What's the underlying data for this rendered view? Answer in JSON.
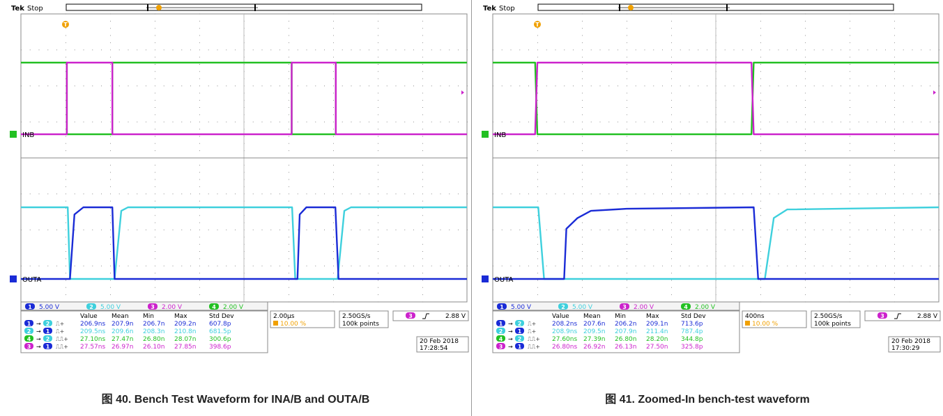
{
  "chart_data": [
    {
      "type": "line",
      "caption": "图 40. Bench Test Waveform for INA/B and OUTA/B",
      "status": {
        "brand": "Tek",
        "state": "Stop",
        "trigger_marker": "T"
      },
      "trace_labels": {
        "upper": "INB",
        "lower": "OUTA"
      },
      "channel_scales": [
        {
          "num": "1",
          "scale": "5.00 V",
          "color": "#1a2bd6"
        },
        {
          "num": "2",
          "scale": "5.00 V",
          "color": "#3ed0dd"
        },
        {
          "num": "3",
          "scale": "2.00 V",
          "color": "#cc22cc"
        },
        {
          "num": "4",
          "scale": "2.00 V",
          "color": "#22c022"
        }
      ],
      "timebase": "2.00µs",
      "trigger_position": "10.00 %",
      "sample_rate": "2.50GS/s",
      "record_length": "100k points",
      "trigger": {
        "channel": "3",
        "level": "2.88 V"
      },
      "date": "20 Feb 2018",
      "time": "17:28:54",
      "measurements": {
        "headers": [
          "Value",
          "Mean",
          "Min",
          "Max",
          "Std Dev"
        ],
        "rows": [
          {
            "from": "1",
            "to": "2",
            "edge": "rise",
            "color": "#1a2bd6",
            "values": [
              "206.9ns",
              "207.9n",
              "206.7n",
              "209.2n",
              "607.8p"
            ]
          },
          {
            "from": "2",
            "to": "1",
            "edge": "rise",
            "color": "#3ed0dd",
            "values": [
              "209.5ns",
              "209.6n",
              "208.3n",
              "210.8n",
              "681.5p"
            ]
          },
          {
            "from": "4",
            "to": "2",
            "edge": "fall",
            "color": "#22c022",
            "values": [
              "27.10ns",
              "27.47n",
              "26.80n",
              "28.07n",
              "300.6p"
            ]
          },
          {
            "from": "3",
            "to": "1",
            "edge": "fall",
            "color": "#cc22cc",
            "values": [
              "27.57ns",
              "26.97n",
              "26.10n",
              "27.85n",
              "398.6p"
            ]
          }
        ]
      },
      "x_divisions": [
        0,
        10
      ],
      "series": [
        {
          "channel": "4",
          "color": "#22c022",
          "level": [
            0,
            1
          ],
          "points": [
            [
              0,
              1
            ],
            [
              1.03,
              1
            ],
            [
              1.03,
              0
            ],
            [
              2.05,
              0
            ],
            [
              2.05,
              1
            ],
            [
              6.07,
              1
            ],
            [
              6.07,
              0
            ],
            [
              7.06,
              0
            ],
            [
              7.06,
              1
            ],
            [
              10,
              1
            ]
          ]
        },
        {
          "channel": "3",
          "color": "#cc22cc",
          "level": [
            0,
            1
          ],
          "points": [
            [
              0,
              0
            ],
            [
              1.03,
              0
            ],
            [
              1.03,
              1
            ],
            [
              2.05,
              1
            ],
            [
              2.05,
              0
            ],
            [
              6.07,
              0
            ],
            [
              6.07,
              1
            ],
            [
              7.06,
              1
            ],
            [
              7.06,
              0
            ],
            [
              10,
              0
            ]
          ]
        },
        {
          "channel": "2",
          "color": "#3ed0dd",
          "level": [
            0,
            1
          ],
          "points": [
            [
              0,
              1
            ],
            [
              1.05,
              1
            ],
            [
              1.1,
              0
            ],
            [
              2.1,
              0
            ],
            [
              2.25,
              0.95
            ],
            [
              2.4,
              1
            ],
            [
              6.08,
              1
            ],
            [
              6.15,
              0
            ],
            [
              7.1,
              0
            ],
            [
              7.25,
              0.95
            ],
            [
              7.4,
              1
            ],
            [
              10,
              1
            ]
          ]
        },
        {
          "channel": "1",
          "color": "#1a2bd6",
          "level": [
            0,
            1
          ],
          "points": [
            [
              0,
              0
            ],
            [
              1.1,
              0
            ],
            [
              1.2,
              0.9
            ],
            [
              1.4,
              1
            ],
            [
              2.05,
              1
            ],
            [
              2.1,
              0
            ],
            [
              6.2,
              0
            ],
            [
              6.25,
              0.9
            ],
            [
              6.4,
              1
            ],
            [
              7.05,
              1
            ],
            [
              7.12,
              0
            ],
            [
              10,
              0
            ]
          ]
        }
      ]
    },
    {
      "type": "line",
      "caption": "图 41. Zoomed-In bench-test waveform",
      "status": {
        "brand": "Tek",
        "state": "Stop",
        "trigger_marker": "T"
      },
      "trace_labels": {
        "upper": "INB",
        "lower": "OUTA"
      },
      "channel_scales": [
        {
          "num": "1",
          "scale": "5.00 V",
          "color": "#1a2bd6"
        },
        {
          "num": "2",
          "scale": "5.00 V",
          "color": "#3ed0dd"
        },
        {
          "num": "3",
          "scale": "2.00 V",
          "color": "#cc22cc"
        },
        {
          "num": "4",
          "scale": "2.00 V",
          "color": "#22c022"
        }
      ],
      "timebase": "400ns",
      "trigger_position": "10.00 %",
      "sample_rate": "2.50GS/s",
      "record_length": "100k points",
      "trigger": {
        "channel": "3",
        "level": "2.88 V"
      },
      "date": "20 Feb 2018",
      "time": "17:30:29",
      "measurements": {
        "headers": [
          "Value",
          "Mean",
          "Min",
          "Max",
          "Std Dev"
        ],
        "rows": [
          {
            "from": "1",
            "to": "2",
            "edge": "rise",
            "color": "#1a2bd6",
            "values": [
              "208.2ns",
              "207.6n",
              "206.2n",
              "209.1n",
              "713.6p"
            ]
          },
          {
            "from": "2",
            "to": "1",
            "edge": "rise",
            "color": "#3ed0dd",
            "values": [
              "208.9ns",
              "209.5n",
              "207.9n",
              "211.4n",
              "787.4p"
            ]
          },
          {
            "from": "4",
            "to": "2",
            "edge": "fall",
            "color": "#22c022",
            "values": [
              "27.60ns",
              "27.39n",
              "26.80n",
              "28.20n",
              "344.8p"
            ]
          },
          {
            "from": "3",
            "to": "1",
            "edge": "fall",
            "color": "#cc22cc",
            "values": [
              "26.80ns",
              "26.92n",
              "26.13n",
              "27.50n",
              "325.8p"
            ]
          }
        ]
      },
      "x_divisions": [
        0,
        10
      ],
      "series": [
        {
          "channel": "4",
          "color": "#22c022",
          "level": [
            0,
            1
          ],
          "points": [
            [
              0,
              1
            ],
            [
              0.95,
              1
            ],
            [
              1.0,
              0
            ],
            [
              5.8,
              0
            ],
            [
              5.85,
              1
            ],
            [
              10,
              1
            ]
          ]
        },
        {
          "channel": "3",
          "color": "#cc22cc",
          "level": [
            0,
            1
          ],
          "points": [
            [
              0,
              0
            ],
            [
              0.95,
              0
            ],
            [
              1.0,
              1
            ],
            [
              5.8,
              1
            ],
            [
              5.85,
              0
            ],
            [
              10,
              0
            ]
          ]
        },
        {
          "channel": "2",
          "color": "#3ed0dd",
          "level": [
            0,
            1
          ],
          "points": [
            [
              0,
              1
            ],
            [
              1.02,
              1
            ],
            [
              1.15,
              0
            ],
            [
              6.1,
              0
            ],
            [
              6.3,
              0.85
            ],
            [
              6.6,
              0.97
            ],
            [
              10,
              1
            ]
          ]
        },
        {
          "channel": "1",
          "color": "#1a2bd6",
          "level": [
            0,
            1
          ],
          "points": [
            [
              0,
              0
            ],
            [
              1.6,
              0
            ],
            [
              1.65,
              0.7
            ],
            [
              1.9,
              0.85
            ],
            [
              2.2,
              0.95
            ],
            [
              3.0,
              0.98
            ],
            [
              5.85,
              1
            ],
            [
              5.95,
              0
            ],
            [
              10,
              0
            ]
          ]
        }
      ]
    }
  ]
}
